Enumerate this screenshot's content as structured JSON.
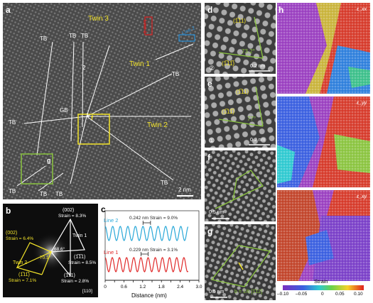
{
  "panels": {
    "a": {
      "label": "a",
      "twin3": "Twin 3",
      "twin1": "Twin 1",
      "twin2": "Twin 2",
      "line1": "Line 1",
      "line2": "Line 2",
      "gb": "GB",
      "tb": "TB",
      "num1": "1",
      "num2": "2",
      "inset_f": "f",
      "inset_g": "g",
      "scale": "2 nm",
      "colors": {
        "hrtem": "#4a4a4a",
        "line1": "#d62020",
        "line2": "#2a8fd6",
        "box_f": "#f2e32a",
        "box_g": "#8ac43f"
      }
    },
    "b": {
      "label": "b",
      "plane_002_a": "(002)",
      "strain_002_a": "Strain = 8.3%",
      "twin1": "Twin 1",
      "plane_002_b": "(002)",
      "strain_002_b": "Strain = 6.4%",
      "plane_111_a": "(1̅1̅1)",
      "strain_111_a": "Strain = 8.5%",
      "angle1": "68.6°",
      "angle2": "70.1°",
      "twin2": "Twin 2",
      "plane_111_b": "(1̅11̅)",
      "strain_111_b": "Strain = 7.1%",
      "plane_111_c": "(1̅11)",
      "strain_111_c": "Strain = 2.8%",
      "zone": "[110]"
    },
    "c": {
      "label": "c",
      "line2": "Line 2",
      "line1": "Line 1",
      "ann2": "0.242 nm   Strain = 9.0%",
      "ann1": "0.229 nm   Strain = 3.1%"
    },
    "d": {
      "label": "d",
      "plane_top": "(1̅11)",
      "plane_bot": "(1̅11̅)",
      "angle": "73.2°",
      "scale": "0.2 nm",
      "num": "②"
    },
    "e": {
      "label": "e",
      "plane_top": "(1̅11)",
      "plane_bot": "(1̅11̅)",
      "angle": "77°",
      "scale": "0.2 nm",
      "num": "①"
    },
    "f": {
      "label": "f",
      "scale": "0.5 nm"
    },
    "g": {
      "label": "g",
      "scale": "0.5 nm",
      "burgers": "b = 1/6 [1̅12]"
    },
    "h": {
      "label": "h",
      "sub1": "ε_xx",
      "sub2": "ε_yy",
      "sub3": "ε_xy",
      "colorbar_title": "Strain",
      "ticks": [
        "–0.10",
        "–0.05",
        "0",
        "0.05",
        "0.10"
      ]
    }
  },
  "chart_data": {
    "type": "line",
    "xlabel": "Distance (nm)",
    "xlim": [
      0,
      3.0
    ],
    "xticks": [
      "0",
      "0.3",
      "0.6",
      "0.9",
      "1.2",
      "1.5",
      "1.8",
      "2.1",
      "2.4",
      "2.7",
      "3.0"
    ],
    "series": [
      {
        "name": "Line 2",
        "color": "#29a8d8",
        "period_nm": 0.242,
        "x_start": 0,
        "x_end": 2.65
      },
      {
        "name": "Line 1",
        "color": "#e02a2a",
        "period_nm": 0.229,
        "x_start": 0,
        "x_end": 2.65
      }
    ]
  }
}
